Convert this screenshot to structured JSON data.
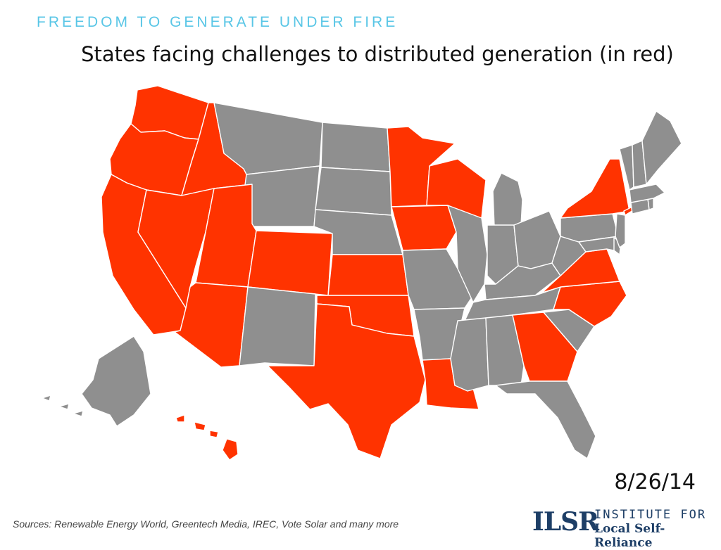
{
  "header": {
    "kicker": "FREEDOM TO GENERATE UNDER FIRE",
    "title": "States facing challenges to distributed generation (in red)"
  },
  "map": {
    "colors": {
      "challenged": "#ff3300",
      "not_challenged": "#8f8f8f"
    },
    "challenged_states": [
      "Washington",
      "Oregon",
      "California",
      "Idaho",
      "Nevada",
      "Utah",
      "Arizona",
      "Colorado",
      "Kansas",
      "Oklahoma",
      "Texas",
      "Louisiana",
      "Minnesota",
      "Iowa",
      "Wisconsin",
      "Georgia",
      "North Carolina",
      "Virginia",
      "New York",
      "Hawaii"
    ]
  },
  "date": "8/26/14",
  "footer": {
    "sources": "Sources: Renewable Energy World, Greentech Media, IREC, Vote Solar and many more",
    "logo_mark": "ILSR",
    "logo_line1": "INSTITUTE FOR",
    "logo_line2": "Local Self-Reliance"
  }
}
